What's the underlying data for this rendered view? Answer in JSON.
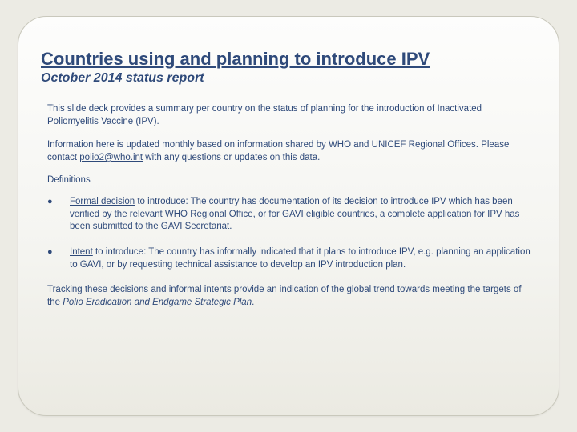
{
  "colors": {
    "page_bg": "#ecebe4",
    "card_border": "#c9c8bc",
    "text_primary": "#2f4a7a"
  },
  "title": "Countries using and planning to introduce IPV",
  "subtitle": "October 2014 status report",
  "para1": "This slide deck provides a summary per country on the status of planning for the introduction of Inactivated Poliomyelitis Vaccine (IPV).",
  "para2_pre": "Information here is updated monthly based on information shared by WHO and UNICEF Regional Offices. Please contact ",
  "para2_link": "polio2@who.int",
  "para2_post": " with any questions or updates on this data.",
  "def_head": "Definitions",
  "bullets": [
    {
      "lead": "Formal decision",
      "rest": " to introduce: The country has documentation of its decision to introduce IPV which has been verified by the relevant WHO Regional Office, or for GAVI eligible countries, a complete application for IPV has been submitted to the GAVI Secretariat."
    },
    {
      "lead": "Intent",
      "rest": " to introduce: The country has informally indicated that it plans to introduce IPV, e.g. planning an application to GAVI, or by requesting technical assistance to develop an IPV introduction plan."
    }
  ],
  "closing_pre": "Tracking these decisions and informal intents provide an indication of the global trend towards meeting the targets of the ",
  "closing_ital": "Polio Eradication and Endgame Strategic Plan",
  "closing_post": "."
}
